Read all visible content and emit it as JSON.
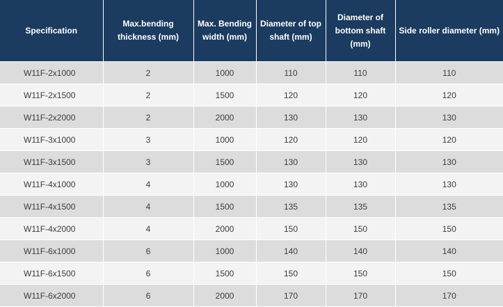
{
  "table": {
    "headers": [
      "Specification",
      "Max.bending thickness (mm)",
      "Max. Bending width (mm)",
      "Diameter of top shaft (mm)",
      "Diameter of bottom shaft (mm)",
      "Side roller diameter  (mm)"
    ],
    "rows": [
      [
        "W11F-2x1000",
        "2",
        "1000",
        "110",
        "110",
        "110"
      ],
      [
        "W11F-2x1500",
        "2",
        "1500",
        "120",
        "120",
        "120"
      ],
      [
        "W11F-2x2000",
        "2",
        "2000",
        "130",
        "130",
        "130"
      ],
      [
        "W11F-3x1000",
        "3",
        "1000",
        "120",
        "120",
        "120"
      ],
      [
        "W11F-3x1500",
        "3",
        "1500",
        "130",
        "130",
        "130"
      ],
      [
        "W11F-4x1000",
        "4",
        "1000",
        "130",
        "130",
        "130"
      ],
      [
        "W11F-4x1500",
        "4",
        "1500",
        "135",
        "135",
        "135"
      ],
      [
        "W11F-4x2000",
        "4",
        "2000",
        "150",
        "150",
        "150"
      ],
      [
        "W11F-6x1000",
        "6",
        "1000",
        "140",
        "140",
        "140"
      ],
      [
        "W11F-6x1500",
        "6",
        "1500",
        "150",
        "150",
        "150"
      ],
      [
        "W11F-6x2000",
        "6",
        "2000",
        "170",
        "170",
        "170"
      ]
    ]
  }
}
